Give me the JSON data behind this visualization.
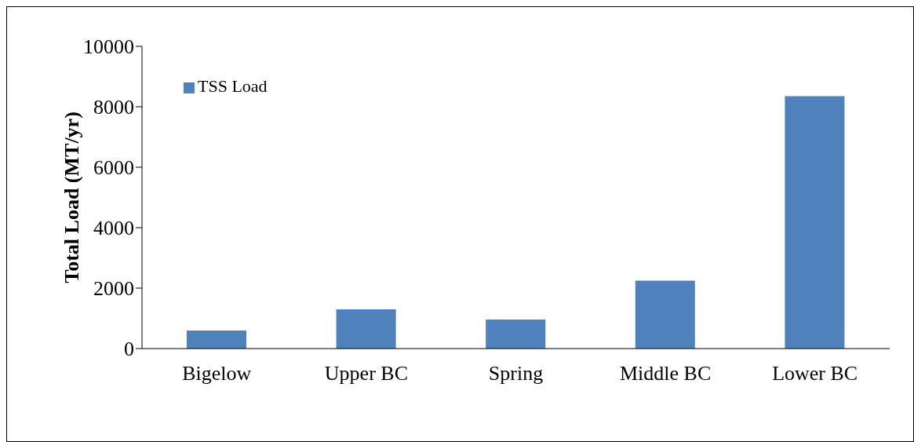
{
  "chart_data": {
    "type": "bar",
    "categories": [
      "Bigelow",
      "Upper BC",
      "Spring",
      "Middle  BC",
      "Lower BC"
    ],
    "series": [
      {
        "name": "TSS Load",
        "color": "#4f81bd",
        "values": [
          600,
          1300,
          960,
          2250,
          8350
        ]
      }
    ],
    "ylabel": "Total Load (MT/yr)",
    "ylim": [
      0,
      10000
    ],
    "yticks": [
      0,
      2000,
      4000,
      6000,
      8000,
      10000
    ],
    "legend": "top left"
  }
}
